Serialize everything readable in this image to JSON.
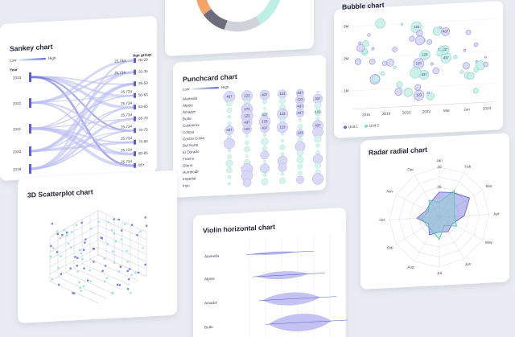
{
  "cards": {
    "sankey": {
      "title": "Sankey chart",
      "legend": [
        "Low",
        "High"
      ],
      "year_header": "Year",
      "age_header": "Age group",
      "years": [
        "2023",
        "2022",
        "2021",
        "2020",
        "2019"
      ],
      "age_groups": [
        "00-20",
        "20-35",
        "35-50",
        "50-63",
        "63-65",
        "65-70",
        "70-75",
        "75-80",
        "80-85",
        "85+"
      ],
      "flow_labels": [
        "25,734",
        "25,734",
        "25,734",
        "25,734",
        "25,734",
        "25,734",
        "25,734",
        "25,734",
        "25,734"
      ]
    },
    "punchcard": {
      "title": "Punchcard chart",
      "legend": [
        "Low",
        "High"
      ],
      "rows": [
        "Alameda",
        "Alpine",
        "Amador",
        "Butte",
        "Calaveras",
        "Colusa",
        "Contra Costa",
        "Del Norte",
        "El Dorado",
        "Fresno",
        "Glenn",
        "Humboldt",
        "Imperial",
        "Inyo"
      ],
      "bubble_labels": [
        "437",
        "123",
        "437",
        "123",
        "437",
        "123",
        "437",
        "123",
        "437",
        "123",
        "437",
        "123",
        "437",
        "123",
        "437",
        "123",
        "437",
        "123",
        "437",
        "123",
        "437",
        "123"
      ]
    },
    "bubble": {
      "title": "Bubble chart",
      "yticks": [
        "3M",
        "2M",
        "1M"
      ],
      "xticks": [
        "2016",
        "2018",
        "2020",
        "2022",
        "Mar",
        "Jun",
        "2023"
      ],
      "legend": [
        "Unit 1",
        "Unit 2"
      ],
      "bubble_labels": [
        "437",
        "123",
        "437",
        "123",
        "437",
        "123",
        "437",
        "123"
      ]
    },
    "scatter3d": {
      "title": "3D Scatterplot chart"
    },
    "violin": {
      "title": "Violin horizontal chart",
      "rows": [
        "Alameda",
        "Alpine",
        "Amador",
        "Butte"
      ]
    },
    "radar": {
      "title": "Radar radial chart",
      "months": [
        "Jan",
        "Feb",
        "Mar",
        "Apr",
        "May",
        "Jun",
        "Jul",
        "Aug",
        "Sep",
        "Oct",
        "Nov",
        "Dec"
      ],
      "rings": [
        "20",
        "25"
      ]
    }
  }
}
